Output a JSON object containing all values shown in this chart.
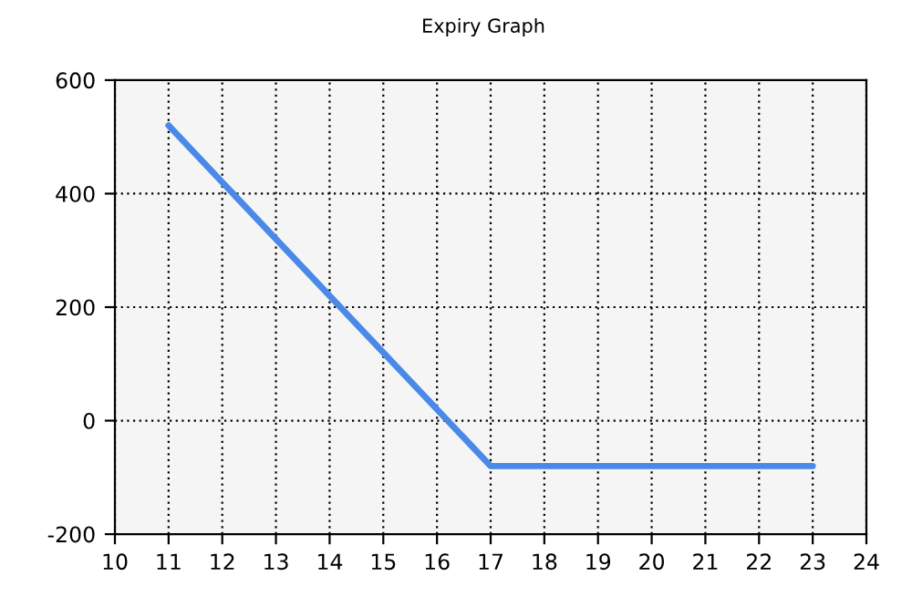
{
  "chart_data": {
    "type": "line",
    "title": "Expiry Graph",
    "x": [
      11,
      17,
      23
    ],
    "series": [
      {
        "color": "#4a89e8",
        "values": [
          520,
          -80,
          -80
        ]
      }
    ],
    "xlim": [
      10,
      24
    ],
    "xticks": [
      10,
      11,
      12,
      13,
      14,
      15,
      16,
      17,
      18,
      19,
      20,
      21,
      22,
      23,
      24
    ],
    "ylim": [
      -200,
      600
    ],
    "yticks": [
      -200,
      0,
      200,
      400,
      600
    ],
    "grid": true,
    "line_style": "solid",
    "marker": "none"
  }
}
